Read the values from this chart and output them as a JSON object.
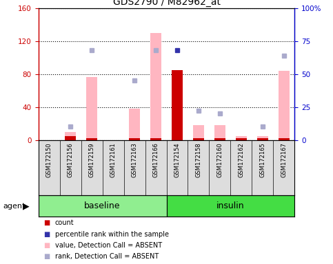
{
  "title": "GDS2790 / M82962_at",
  "samples": [
    "GSM172150",
    "GSM172156",
    "GSM172159",
    "GSM172161",
    "GSM172163",
    "GSM172166",
    "GSM172154",
    "GSM172158",
    "GSM172160",
    "GSM172162",
    "GSM172165",
    "GSM172167"
  ],
  "absent_flags": [
    true,
    true,
    true,
    true,
    true,
    true,
    false,
    true,
    true,
    true,
    true,
    true
  ],
  "absent_values": [
    0,
    10,
    76,
    0,
    38,
    130,
    0,
    18,
    18,
    5,
    5,
    84
  ],
  "count_values": [
    0,
    5,
    2,
    0,
    2,
    2,
    85,
    2,
    2,
    2,
    2,
    2
  ],
  "present_ranks": [
    0,
    0,
    0,
    0,
    0,
    0,
    68,
    0,
    0,
    0,
    0,
    0
  ],
  "absent_ranks_right": [
    0,
    10,
    68,
    0,
    45,
    68,
    0,
    22,
    20,
    0,
    10,
    64
  ],
  "ylim_left": [
    0,
    160
  ],
  "ylim_right": [
    0,
    100
  ],
  "yticks_left": [
    0,
    40,
    80,
    120,
    160
  ],
  "yticks_right": [
    0,
    25,
    50,
    75,
    100
  ],
  "yticklabels_left": [
    "0",
    "40",
    "80",
    "120",
    "160"
  ],
  "yticklabels_right": [
    "0",
    "25",
    "50",
    "75",
    "100%"
  ],
  "axis_color_left": "#CC0000",
  "axis_color_right": "#0000CC",
  "absent_bar_color": "#FFB6C1",
  "count_bar_color": "#CC0000",
  "present_rank_dot_color": "#3333AA",
  "absent_rank_dot_color": "#AAAACC",
  "group_color_baseline": "#90EE90",
  "group_color_insulin": "#44DD44",
  "label_bg_color": "#DDDDDD",
  "plot_bg_color": "#FFFFFF",
  "bar_width": 0.5,
  "n_baseline": 6,
  "n_insulin": 6
}
